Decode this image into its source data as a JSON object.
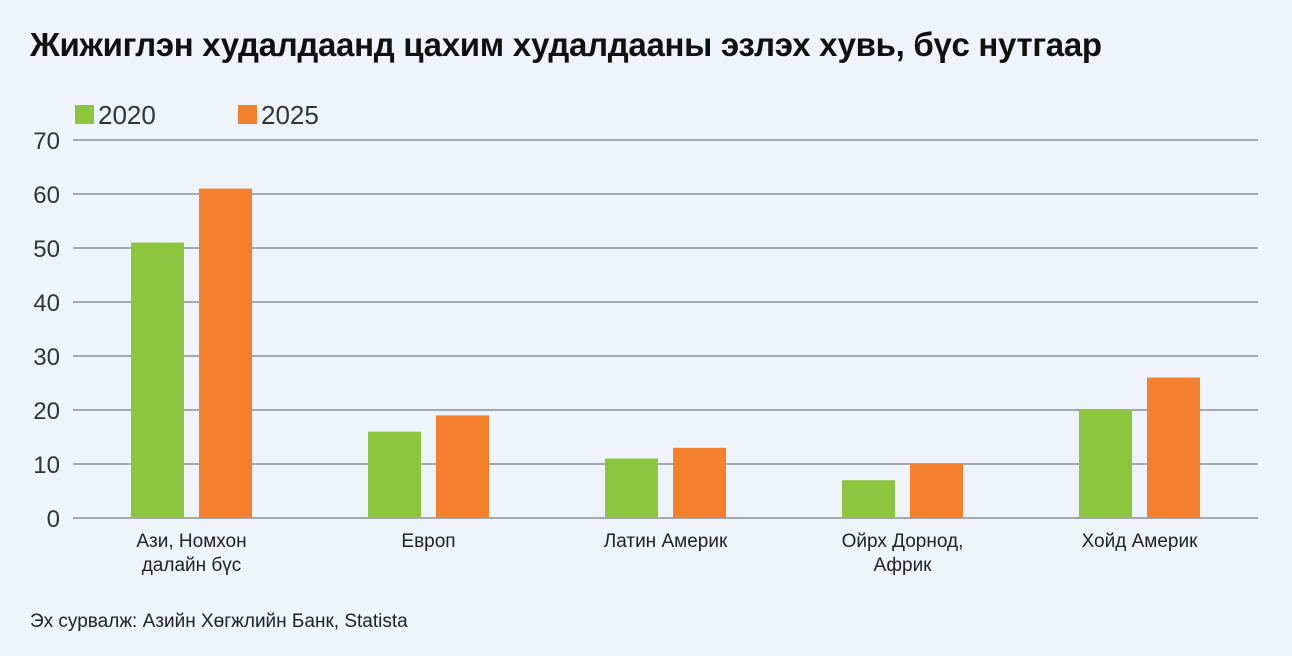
{
  "chart_data": {
    "type": "bar",
    "title": "Жижиглэн худалдаанд цахим худалдааны эзлэх хувь, бүс нутгаар",
    "categories": [
      [
        "Ази, Номхон",
        "далайн бүс"
      ],
      [
        "Европ"
      ],
      [
        "Латин Америк"
      ],
      [
        "Ойрх Дорнод,",
        "Африк"
      ],
      [
        "Хойд Америк"
      ]
    ],
    "series": [
      {
        "name": "2020",
        "color": "#8cc63f",
        "values": [
          51,
          16,
          11,
          7,
          20
        ]
      },
      {
        "name": "2025",
        "color": "#f47f2c",
        "values": [
          61,
          19,
          13,
          10,
          26
        ]
      }
    ],
    "yticks": [
      "0",
      "10",
      "20",
      "30",
      "40",
      "50",
      "60",
      "70"
    ],
    "ylim": [
      0,
      70
    ],
    "xlabel": "",
    "ylabel": "",
    "grid": true,
    "legend_position": "top-left",
    "source": "Эх сурвалж: Азийн Хөгжлийн Банк, Statista"
  }
}
